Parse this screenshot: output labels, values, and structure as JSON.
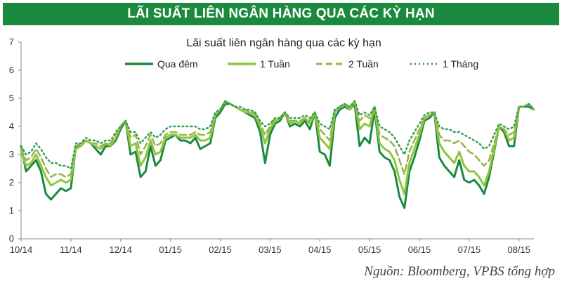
{
  "banner": {
    "title": "LÃI SUẤT LIÊN NGÂN HÀNG QUA CÁC KỲ HẠN"
  },
  "source": "Nguồn: Bloomberg, VPBS tổng hợp",
  "chart_data": {
    "type": "line",
    "title": "Lãi suất liên ngân hàng qua các kỳ hạn",
    "xlabel": "",
    "ylabel": "",
    "ylim": [
      0,
      7
    ],
    "yticks": [
      "0",
      "1",
      "2",
      "3",
      "4",
      "5",
      "6",
      "7"
    ],
    "xticks": [
      "10/14",
      "11/14",
      "12/14",
      "01/15",
      "02/15",
      "03/15",
      "04/15",
      "05/15",
      "06/15",
      "07/15",
      "08/15"
    ],
    "grid": false,
    "legend": "top",
    "x": [
      0,
      0.1,
      0.2,
      0.3,
      0.4,
      0.5,
      0.6,
      0.7,
      0.8,
      0.9,
      1,
      1.1,
      1.2,
      1.3,
      1.4,
      1.5,
      1.6,
      1.7,
      1.8,
      1.9,
      2,
      2.1,
      2.2,
      2.3,
      2.4,
      2.5,
      2.6,
      2.7,
      2.8,
      2.9,
      3,
      3.1,
      3.2,
      3.3,
      3.4,
      3.5,
      3.6,
      3.7,
      3.8,
      3.9,
      4,
      4.1,
      4.2,
      4.3,
      4.4,
      4.5,
      4.6,
      4.7,
      4.8,
      4.9,
      5,
      5.1,
      5.2,
      5.3,
      5.4,
      5.5,
      5.6,
      5.7,
      5.8,
      5.9,
      6,
      6.1,
      6.2,
      6.3,
      6.4,
      6.5,
      6.6,
      6.7,
      6.8,
      6.9,
      7,
      7.1,
      7.2,
      7.3,
      7.4,
      7.5,
      7.6,
      7.7,
      7.8,
      7.9,
      8,
      8.1,
      8.2,
      8.3,
      8.4,
      8.5,
      8.6,
      8.7,
      8.8,
      8.9,
      9,
      9.1,
      9.2,
      9.3,
      9.4,
      9.5,
      9.6,
      9.7,
      9.8,
      9.9,
      10,
      10.1,
      10.2,
      10.3
    ],
    "series": [
      {
        "name": "Qua đêm",
        "color": "#1b8a3e",
        "dash": "solid",
        "values": [
          3.3,
          2.4,
          2.6,
          2.8,
          2.4,
          1.6,
          1.4,
          1.6,
          1.8,
          1.7,
          1.8,
          3.3,
          3.3,
          3.5,
          3.4,
          3.2,
          3.0,
          3.3,
          3.3,
          3.5,
          3.9,
          4.2,
          3.0,
          3.1,
          2.2,
          2.4,
          3.3,
          2.6,
          2.8,
          3.5,
          3.6,
          3.7,
          3.5,
          3.5,
          3.4,
          3.6,
          3.2,
          3.3,
          3.4,
          4.3,
          4.5,
          4.8,
          4.8,
          4.7,
          4.6,
          4.5,
          4.4,
          4.3,
          3.8,
          2.7,
          3.7,
          4.1,
          4.2,
          4.5,
          4.0,
          4.1,
          4.0,
          4.2,
          3.9,
          4.5,
          3.1,
          3.0,
          2.6,
          4.3,
          4.6,
          4.7,
          4.6,
          4.8,
          3.3,
          3.6,
          3.4,
          4.6,
          3.1,
          2.9,
          2.8,
          2.4,
          1.5,
          1.1,
          2.4,
          2.9,
          3.5,
          4.2,
          4.3,
          4.5,
          2.9,
          2.6,
          2.4,
          2.2,
          2.8,
          2.1,
          2.0,
          2.1,
          1.9,
          1.6,
          2.2,
          3.1,
          4.0,
          3.8,
          3.3,
          3.3,
          4.7,
          4.7,
          4.7,
          4.6
        ]
      },
      {
        "name": "1 Tuần",
        "color": "#8cc63f",
        "dash": "solid",
        "values": [
          3.1,
          2.6,
          2.7,
          3.0,
          2.6,
          2.2,
          1.9,
          2.0,
          2.1,
          2.0,
          2.1,
          3.2,
          3.3,
          3.5,
          3.4,
          3.3,
          3.2,
          3.4,
          3.3,
          3.6,
          4.0,
          4.2,
          3.3,
          3.4,
          2.6,
          2.9,
          3.5,
          3.0,
          3.1,
          3.6,
          3.7,
          3.7,
          3.6,
          3.6,
          3.6,
          3.7,
          3.5,
          3.5,
          3.6,
          4.4,
          4.6,
          4.9,
          4.8,
          4.7,
          4.6,
          4.5,
          4.5,
          4.4,
          4.0,
          3.4,
          3.9,
          4.2,
          4.3,
          4.5,
          4.1,
          4.2,
          4.1,
          4.3,
          4.1,
          4.5,
          3.6,
          3.4,
          3.2,
          4.5,
          4.7,
          4.8,
          4.6,
          4.9,
          3.9,
          4.1,
          4.0,
          4.7,
          3.4,
          3.2,
          3.1,
          2.8,
          2.1,
          1.6,
          2.7,
          3.2,
          3.7,
          4.3,
          4.4,
          4.5,
          3.4,
          3.1,
          2.9,
          2.7,
          3.1,
          2.6,
          2.4,
          2.4,
          2.2,
          1.9,
          2.4,
          3.2,
          4.0,
          3.9,
          3.5,
          3.6,
          4.7,
          4.7,
          4.8,
          4.6
        ]
      },
      {
        "name": "2 Tuần",
        "color": "#9bb54a",
        "dash": "dashed",
        "values": [
          3.2,
          2.8,
          2.9,
          3.2,
          2.9,
          2.5,
          2.2,
          2.3,
          2.3,
          2.2,
          2.3,
          3.3,
          3.4,
          3.5,
          3.4,
          3.4,
          3.3,
          3.4,
          3.4,
          3.7,
          4.0,
          4.2,
          3.6,
          3.7,
          3.0,
          3.3,
          3.7,
          3.3,
          3.4,
          3.7,
          3.8,
          3.8,
          3.7,
          3.7,
          3.7,
          3.8,
          3.7,
          3.7,
          3.8,
          4.4,
          4.6,
          4.9,
          4.8,
          4.7,
          4.6,
          4.6,
          4.5,
          4.5,
          4.1,
          3.7,
          4.0,
          4.3,
          4.3,
          4.5,
          4.2,
          4.2,
          4.2,
          4.3,
          4.2,
          4.5,
          3.9,
          3.7,
          3.5,
          4.6,
          4.7,
          4.8,
          4.7,
          4.9,
          4.2,
          4.4,
          4.3,
          4.7,
          3.7,
          3.6,
          3.5,
          3.3,
          2.8,
          2.3,
          3.1,
          3.5,
          3.9,
          4.3,
          4.4,
          4.5,
          3.7,
          3.5,
          3.5,
          3.4,
          3.5,
          3.3,
          3.1,
          3.0,
          2.8,
          2.6,
          2.8,
          3.4,
          4.0,
          3.9,
          3.7,
          3.8,
          4.7,
          4.7,
          4.8,
          4.6
        ]
      },
      {
        "name": "1 Tháng",
        "color": "#2e9e4f",
        "dash": "dotted",
        "values": [
          3.3,
          3.0,
          3.1,
          3.4,
          3.2,
          2.9,
          2.7,
          2.7,
          2.6,
          2.6,
          2.5,
          3.4,
          3.4,
          3.6,
          3.5,
          3.5,
          3.4,
          3.5,
          3.5,
          3.8,
          4.0,
          4.2,
          3.8,
          3.8,
          3.4,
          3.6,
          3.8,
          3.6,
          3.7,
          3.9,
          4.0,
          4.0,
          4.0,
          4.0,
          4.0,
          4.0,
          3.9,
          3.9,
          4.0,
          4.5,
          4.6,
          4.9,
          4.8,
          4.7,
          4.7,
          4.6,
          4.6,
          4.5,
          4.2,
          4.0,
          4.1,
          4.3,
          4.3,
          4.5,
          4.3,
          4.3,
          4.3,
          4.4,
          4.3,
          4.5,
          4.1,
          4.0,
          3.9,
          4.6,
          4.7,
          4.8,
          4.7,
          4.9,
          4.4,
          4.5,
          4.4,
          4.7,
          4.0,
          3.9,
          3.8,
          3.6,
          3.3,
          3.0,
          3.5,
          3.8,
          4.1,
          4.4,
          4.5,
          4.5,
          4.0,
          3.9,
          3.9,
          3.8,
          3.8,
          3.7,
          3.6,
          3.5,
          3.4,
          3.2,
          3.3,
          3.7,
          4.1,
          4.0,
          3.9,
          4.0,
          4.7,
          4.7,
          4.8,
          4.6
        ]
      }
    ]
  }
}
